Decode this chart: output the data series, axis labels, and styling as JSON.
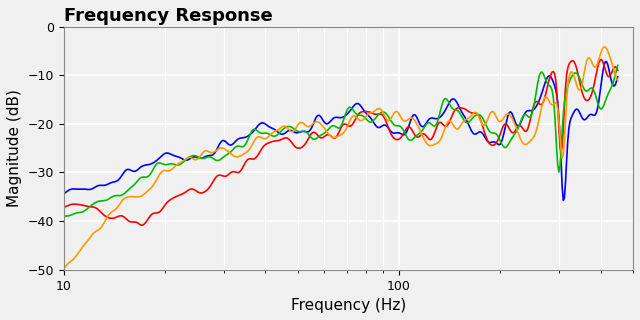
{
  "title": "Frequency Response",
  "xlabel": "Frequency (Hz)",
  "ylabel": "Magnitude (dB)",
  "xlim": [
    10,
    500
  ],
  "ylim": [
    -50,
    0
  ],
  "yticks": [
    0,
    -10,
    -20,
    -30,
    -40,
    -50
  ],
  "background_color": "#f0f0f0",
  "grid_color": "#ffffff",
  "line_colors": [
    "#0000ff",
    "#ff0000",
    "#00bb00",
    "#ff9900"
  ],
  "line_width": 1.2,
  "title_fontsize": 13,
  "label_fontsize": 11
}
